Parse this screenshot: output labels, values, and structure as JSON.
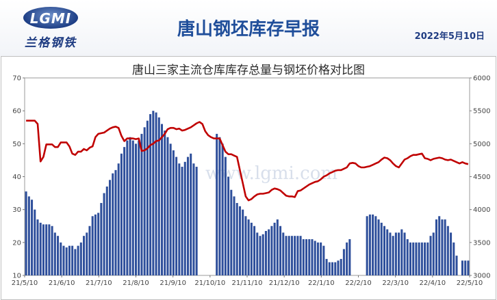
{
  "header": {
    "logo_text": "LGMI",
    "logo_cn": "兰格钢铁",
    "title": "唐山钢坯库存早报",
    "date": "2022年5月10日"
  },
  "watermark": "www.lgmi.com",
  "chart_data": {
    "type": "bar+line",
    "title": "唐山三家主流仓库库存总量与钢坯价格对比图",
    "xlabel": "",
    "ylabel_left": "",
    "ylabel_right": "",
    "left_axis": {
      "min": 10,
      "max": 70,
      "ticks": [
        "10",
        "20",
        "30",
        "40",
        "50",
        "60",
        "70"
      ]
    },
    "right_axis": {
      "min": 3000,
      "max": 6000,
      "ticks": [
        "3000",
        "3500",
        "4000",
        "4500",
        "5000",
        "5500",
        "6000"
      ]
    },
    "x_ticks": [
      "21/5/10",
      "21/6/10",
      "21/7/10",
      "21/8/10",
      "21/9/10",
      "21/10/10",
      "21/11/10",
      "21/12/10",
      "22/1/10",
      "22/2/10",
      "22/3/10",
      "22/4/10",
      "22/5/10"
    ],
    "colors": {
      "bars": "#2e4f9b",
      "line": "#c00000"
    },
    "bars": [
      35.5,
      34,
      33,
      30,
      27,
      26,
      25.5,
      25.5,
      25.5,
      25,
      23,
      22,
      20,
      19,
      18.5,
      19,
      19,
      18,
      19,
      20,
      22,
      23,
      25,
      28,
      28.5,
      29,
      32,
      35,
      37,
      39,
      41,
      42,
      44,
      47,
      49,
      51,
      52,
      51,
      50,
      51,
      53,
      55,
      57,
      59,
      60,
      59.5,
      58,
      56,
      54,
      52,
      50,
      48,
      46,
      44,
      43,
      44.5,
      46,
      47,
      44,
      43,
      0,
      0,
      0,
      0,
      0,
      0,
      53,
      52,
      50,
      46,
      40,
      36,
      34,
      32,
      31,
      30,
      28,
      27,
      26,
      25,
      23,
      22,
      22.5,
      23.5,
      24,
      25,
      26,
      27,
      25,
      23,
      22,
      22,
      22,
      22,
      22,
      22,
      21,
      21,
      21,
      21,
      20.5,
      20,
      20,
      19,
      15,
      14,
      14,
      14,
      14.5,
      15,
      18,
      20,
      21,
      0,
      0,
      0,
      0,
      0,
      28,
      28.5,
      28.5,
      28,
      27,
      26,
      25,
      24,
      23,
      22,
      23,
      23,
      24,
      23,
      21,
      20,
      20,
      20,
      20,
      20,
      20,
      20,
      22,
      23,
      27,
      28,
      27,
      27,
      25,
      23,
      20,
      16,
      0,
      14.5,
      14.5,
      14.5
    ],
    "price": [
      5350,
      5350,
      5350,
      5350,
      5300,
      4730,
      4800,
      4990,
      4990,
      4990,
      4950,
      4950,
      5020,
      5020,
      5020,
      4960,
      4850,
      4830,
      4880,
      4880,
      4920,
      4900,
      4940,
      4960,
      5100,
      5150,
      5160,
      5170,
      5200,
      5230,
      5250,
      5260,
      5240,
      5120,
      5040,
      5080,
      5080,
      5080,
      5070,
      5080,
      4890,
      4900,
      4930,
      4980,
      5000,
      5040,
      5050,
      5100,
      5150,
      5220,
      5240,
      5240,
      5220,
      5230,
      5200,
      5210,
      5230,
      5250,
      5280,
      5310,
      5330,
      5300,
      5190,
      5130,
      5100,
      5080,
      5080,
      5080,
      4980,
      4880,
      4840,
      4840,
      4820,
      4800,
      4600,
      4400,
      4200,
      4140,
      4160,
      4200,
      4230,
      4240,
      4240,
      4250,
      4260,
      4300,
      4320,
      4310,
      4290,
      4250,
      4210,
      4200,
      4200,
      4190,
      4280,
      4290,
      4320,
      4350,
      4380,
      4400,
      4420,
      4430,
      4460,
      4500,
      4520,
      4550,
      4570,
      4590,
      4600,
      4600,
      4620,
      4640,
      4700,
      4710,
      4700,
      4660,
      4640,
      4640,
      4650,
      4660,
      4680,
      4700,
      4720,
      4760,
      4790,
      4780,
      4750,
      4700,
      4660,
      4640,
      4700,
      4760,
      4780,
      4810,
      4830,
      4830,
      4840,
      4850,
      4780,
      4770,
      4750,
      4770,
      4780,
      4790,
      4780,
      4760,
      4750,
      4760,
      4740,
      4720,
      4700,
      4720,
      4700,
      4690
    ]
  }
}
